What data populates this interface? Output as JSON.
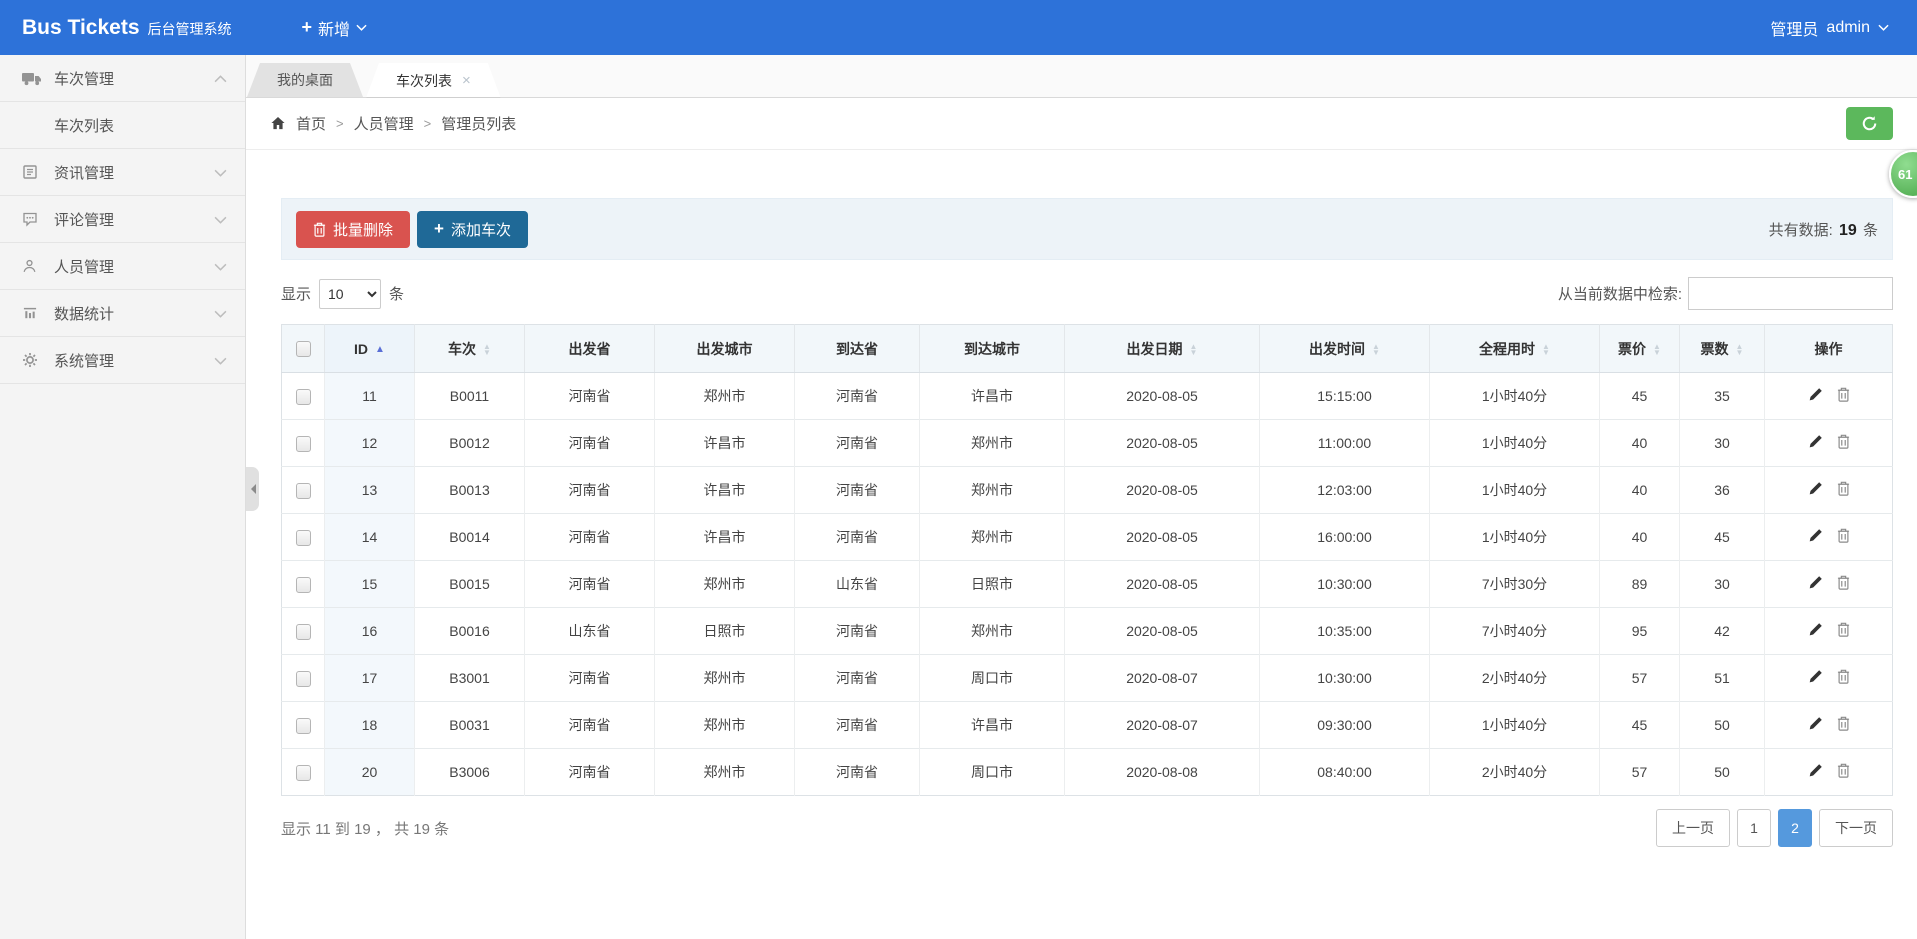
{
  "navbar": {
    "brand": "Bus Tickets",
    "brand_suffix": "后台管理系统",
    "add_label": "新增",
    "user_role": "管理员",
    "username": "admin"
  },
  "sidebar": {
    "items": [
      {
        "key": "schedule-management",
        "label": "车次管理",
        "icon": "truck-icon",
        "expanded": true,
        "children": [
          {
            "key": "schedule-list",
            "label": "车次列表"
          }
        ]
      },
      {
        "key": "news-management",
        "label": "资讯管理",
        "icon": "news-icon",
        "expanded": false,
        "children": []
      },
      {
        "key": "comment-management",
        "label": "评论管理",
        "icon": "comment-icon",
        "expanded": false,
        "children": []
      },
      {
        "key": "personnel-management",
        "label": "人员管理",
        "icon": "user-icon",
        "expanded": false,
        "children": []
      },
      {
        "key": "data-statistics",
        "label": "数据统计",
        "icon": "chart-icon",
        "expanded": false,
        "children": []
      },
      {
        "key": "system-management",
        "label": "系统管理",
        "icon": "gear-icon",
        "expanded": false,
        "children": []
      }
    ]
  },
  "tabs": [
    {
      "label": "我的桌面",
      "active": false,
      "closable": false
    },
    {
      "label": "车次列表",
      "active": true,
      "closable": true
    }
  ],
  "breadcrumb": {
    "home": "首页",
    "items": [
      "人员管理",
      "管理员列表"
    ],
    "separator": ">"
  },
  "toolbar": {
    "batch_delete_label": "批量删除",
    "add_schedule_label": "添加车次",
    "total_prefix": "共有数据:",
    "total_count": "19",
    "total_unit": "条"
  },
  "controls": {
    "show_prefix": "显示",
    "page_size": "10",
    "show_unit": "条",
    "search_label": "从当前数据中检索:",
    "search_value": ""
  },
  "table": {
    "columns": [
      {
        "label": "ID",
        "sort": "asc"
      },
      {
        "label": "车次",
        "sort": "both"
      },
      {
        "label": "出发省",
        "sort": null
      },
      {
        "label": "出发城市",
        "sort": null
      },
      {
        "label": "到达省",
        "sort": null
      },
      {
        "label": "到达城市",
        "sort": null
      },
      {
        "label": "出发日期",
        "sort": "both"
      },
      {
        "label": "出发时间",
        "sort": "both"
      },
      {
        "label": "全程用时",
        "sort": "both"
      },
      {
        "label": "票价",
        "sort": "both"
      },
      {
        "label": "票数",
        "sort": "both"
      },
      {
        "label": "操作",
        "sort": null
      }
    ],
    "rows": [
      [
        "11",
        "B0011",
        "河南省",
        "郑州市",
        "河南省",
        "许昌市",
        "2020-08-05",
        "15:15:00",
        "1小时40分",
        "45",
        "35"
      ],
      [
        "12",
        "B0012",
        "河南省",
        "许昌市",
        "河南省",
        "郑州市",
        "2020-08-05",
        "11:00:00",
        "1小时40分",
        "40",
        "30"
      ],
      [
        "13",
        "B0013",
        "河南省",
        "许昌市",
        "河南省",
        "郑州市",
        "2020-08-05",
        "12:03:00",
        "1小时40分",
        "40",
        "36"
      ],
      [
        "14",
        "B0014",
        "河南省",
        "许昌市",
        "河南省",
        "郑州市",
        "2020-08-05",
        "16:00:00",
        "1小时40分",
        "40",
        "45"
      ],
      [
        "15",
        "B0015",
        "河南省",
        "郑州市",
        "山东省",
        "日照市",
        "2020-08-05",
        "10:30:00",
        "7小时30分",
        "89",
        "30"
      ],
      [
        "16",
        "B0016",
        "山东省",
        "日照市",
        "河南省",
        "郑州市",
        "2020-08-05",
        "10:35:00",
        "7小时40分",
        "95",
        "42"
      ],
      [
        "17",
        "B3001",
        "河南省",
        "郑州市",
        "河南省",
        "周口市",
        "2020-08-07",
        "10:30:00",
        "2小时40分",
        "57",
        "51"
      ],
      [
        "18",
        "B0031",
        "河南省",
        "郑州市",
        "河南省",
        "许昌市",
        "2020-08-07",
        "09:30:00",
        "1小时40分",
        "45",
        "50"
      ],
      [
        "20",
        "B3006",
        "河南省",
        "郑州市",
        "河南省",
        "周口市",
        "2020-08-08",
        "08:40:00",
        "2小时40分",
        "57",
        "50"
      ]
    ]
  },
  "footer": {
    "summary": "显示 11 到 19 ， 共 19 条",
    "pagination": {
      "prev_label": "上一页",
      "pages": [
        "1",
        "2"
      ],
      "active_page": "2",
      "next_label": "下一页"
    }
  },
  "float_badge": {
    "value": "61"
  },
  "colors": {
    "navbar_blue": "#2d72d9",
    "danger_red": "#d9534f",
    "primary_dark_blue": "#1f6997",
    "success_green": "#5cb85c",
    "active_page_blue": "#5599dd",
    "sort_active_blue": "#5a6fd6"
  }
}
